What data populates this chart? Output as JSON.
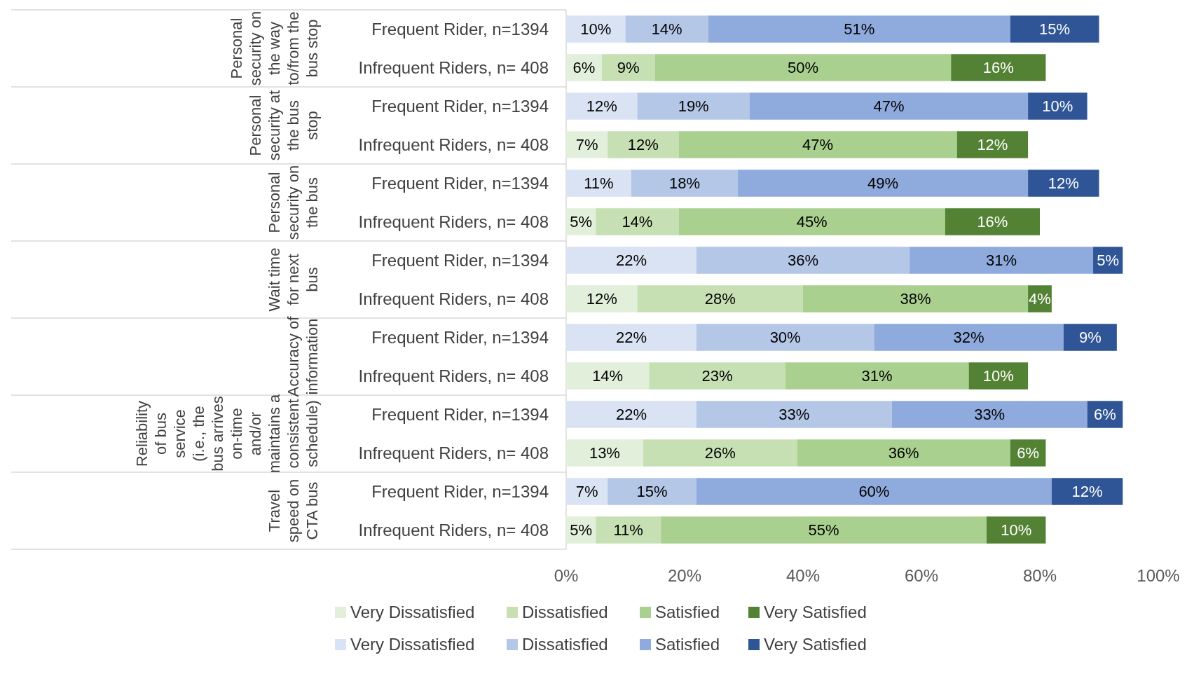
{
  "chart_data": {
    "type": "bar",
    "orientation": "horizontal",
    "stacked": true,
    "categories": [
      "Frequent Rider, n=1394",
      "Infrequent Riders, n= 408",
      "Frequent Rider, n=1394",
      "Infrequent Riders, n= 408",
      "Frequent Rider, n=1394",
      "Infrequent Riders, n= 408",
      "Frequent Rider, n=1394",
      "Infrequent Riders, n= 408",
      "Frequent Rider, n=1394",
      "Infrequent Riders, n= 408",
      "Frequent Rider, n=1394",
      "Infrequent Riders, n= 408",
      "Frequent Rider, n=1394",
      "Infrequent Riders, n= 408"
    ],
    "annotations": [
      "Personal security on the way to/from the bus stop",
      "Personal security at the bus stop",
      "Personal security on the bus",
      "Wait time for next bus",
      "Accuracy of information",
      "Reliability of bus service (i.e., the bus arrives on-time and/or maintains a consistent schedule)",
      "Travel speed on CTA bus"
    ],
    "series": [
      {
        "name": "Very Dissatisfied",
        "color": "#e2efda",
        "values": [
          null,
          6,
          null,
          7,
          null,
          5,
          null,
          12,
          null,
          14,
          null,
          13,
          null,
          5
        ],
        "value_labels": [
          null,
          "6%",
          null,
          "7%",
          null,
          "5%",
          null,
          "12%",
          null,
          "14%",
          null,
          "13%",
          null,
          "5%"
        ]
      },
      {
        "name": "Dissatisfied",
        "color": "#c6e0b4",
        "values": [
          null,
          9,
          null,
          12,
          null,
          14,
          null,
          28,
          null,
          23,
          null,
          26,
          null,
          11
        ],
        "value_labels": [
          null,
          "9%",
          null,
          "12%",
          null,
          "14%",
          null,
          "28%",
          null,
          "23%",
          null,
          "26%",
          null,
          "11%"
        ]
      },
      {
        "name": "Satisfied",
        "color": "#a9d08e",
        "values": [
          null,
          50,
          null,
          47,
          null,
          45,
          null,
          38,
          null,
          31,
          null,
          36,
          null,
          55
        ],
        "value_labels": [
          null,
          "50%",
          null,
          "47%",
          null,
          "45%",
          null,
          "38%",
          null,
          "31%",
          null,
          "36%",
          null,
          "55%"
        ]
      },
      {
        "name": "Very Satisfied",
        "color": "#548235",
        "values": [
          null,
          16,
          null,
          12,
          null,
          16,
          null,
          4,
          null,
          10,
          null,
          6,
          null,
          10
        ],
        "value_labels": [
          null,
          "16%",
          null,
          "12%",
          null,
          "16%",
          null,
          "4%",
          null,
          "10%",
          null,
          "6%",
          null,
          "10%"
        ]
      },
      {
        "name": "Very Dissatisfied",
        "color": "#dae3f3",
        "values": [
          10,
          null,
          12,
          null,
          11,
          null,
          22,
          null,
          22,
          null,
          22,
          null,
          7,
          null
        ],
        "value_labels": [
          "10%",
          null,
          "12%",
          null,
          "11%",
          null,
          "22%",
          null,
          "22%",
          null,
          "22%",
          null,
          "7%",
          null
        ]
      },
      {
        "name": "Dissatisfied",
        "color": "#b4c7e7",
        "values": [
          14,
          null,
          19,
          null,
          18,
          null,
          36,
          null,
          30,
          null,
          33,
          null,
          15,
          null
        ],
        "value_labels": [
          "14%",
          null,
          "19%",
          null,
          "18%",
          null,
          "36%",
          null,
          "30%",
          null,
          "33%",
          null,
          "15%",
          null
        ]
      },
      {
        "name": "Satisfied",
        "color": "#8faadc",
        "values": [
          51,
          null,
          47,
          null,
          49,
          null,
          31,
          null,
          32,
          null,
          33,
          null,
          60,
          null
        ],
        "value_labels": [
          "51%",
          null,
          "47%",
          null,
          "49%",
          null,
          "31%",
          null,
          "32%",
          null,
          "33%",
          null,
          "60%",
          null
        ]
      },
      {
        "name": "Very Satisfied",
        "color": "#2f5597",
        "values": [
          15,
          null,
          10,
          null,
          12,
          null,
          5,
          null,
          9,
          null,
          6,
          null,
          12,
          null
        ],
        "value_labels": [
          "15%",
          null,
          "10%",
          null,
          "12%",
          null,
          "5%",
          null,
          "9%",
          null,
          "6%",
          null,
          "12%",
          null
        ]
      }
    ],
    "xlim": [
      0,
      100
    ],
    "xticks": [
      {
        "value": 0,
        "label": "0%"
      },
      {
        "value": 20,
        "label": "20%"
      },
      {
        "value": 40,
        "label": "40%"
      },
      {
        "value": 60,
        "label": "60%"
      },
      {
        "value": 80,
        "label": "80%"
      },
      {
        "value": 100,
        "label": "100%"
      }
    ],
    "legend": "bottom"
  }
}
